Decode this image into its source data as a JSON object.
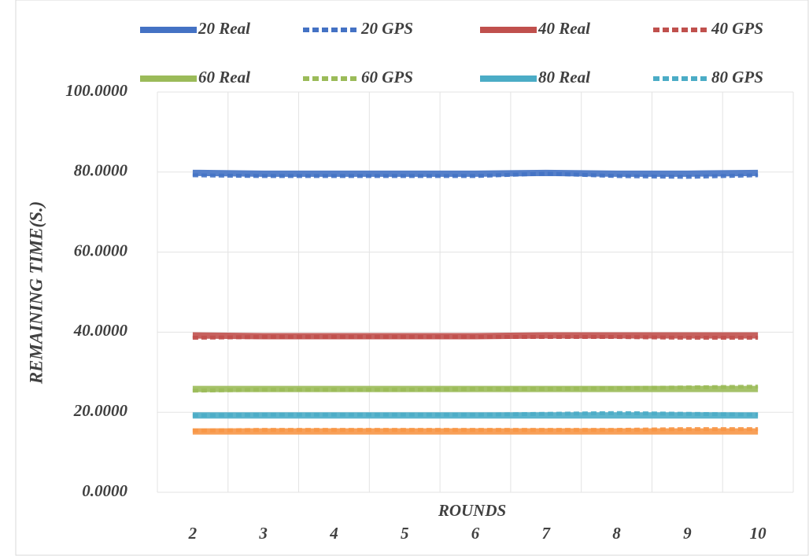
{
  "chart_data": {
    "type": "line",
    "xlabel": "ROUNDS",
    "ylabel": "REMAINING TIME(S.)",
    "categories": [
      "2",
      "3",
      "4",
      "5",
      "6",
      "7",
      "8",
      "9",
      "10"
    ],
    "ylim": [
      0,
      100
    ],
    "yticks": [
      {
        "value": 0,
        "label": "0.0000"
      },
      {
        "value": 20,
        "label": "20.0000"
      },
      {
        "value": 40,
        "label": "40.0000"
      },
      {
        "value": 60,
        "label": "60.0000"
      },
      {
        "value": 80,
        "label": "80.0000"
      },
      {
        "value": 100,
        "label": "100.0000"
      }
    ],
    "grid": true,
    "legend": "top",
    "series": [
      {
        "name": "20 Real",
        "color": "#4472c4",
        "dash": false,
        "values": [
          79.8,
          79.6,
          79.6,
          79.6,
          79.6,
          79.8,
          79.6,
          79.6,
          79.8
        ]
      },
      {
        "name": "20 GPS",
        "color": "#4472c4",
        "dash": true,
        "values": [
          79.2,
          79.0,
          79.0,
          79.0,
          79.0,
          79.6,
          79.0,
          78.8,
          79.2
        ]
      },
      {
        "name": "40 Real",
        "color": "#c0504d",
        "dash": false,
        "values": [
          39.2,
          39.0,
          39.0,
          39.0,
          39.0,
          39.2,
          39.2,
          39.2,
          39.2
        ]
      },
      {
        "name": "40 GPS",
        "color": "#c0504d",
        "dash": true,
        "values": [
          38.6,
          38.8,
          38.8,
          38.8,
          38.8,
          38.8,
          38.8,
          38.6,
          38.6
        ]
      },
      {
        "name": "60 Real",
        "color": "#9bbb59",
        "dash": false,
        "values": [
          25.8,
          25.8,
          25.8,
          25.8,
          25.8,
          25.8,
          25.8,
          25.8,
          25.8
        ]
      },
      {
        "name": "60 GPS",
        "color": "#9bbb59",
        "dash": true,
        "values": [
          25.4,
          25.6,
          25.6,
          25.6,
          25.8,
          25.8,
          26.0,
          26.2,
          26.4
        ]
      },
      {
        "name": "80 Real",
        "color": "#4bacc6",
        "dash": false,
        "values": [
          19.2,
          19.2,
          19.2,
          19.2,
          19.2,
          19.2,
          19.2,
          19.2,
          19.2
        ]
      },
      {
        "name": "80 GPS",
        "color": "#4bacc6",
        "dash": true,
        "values": [
          19.2,
          19.4,
          19.4,
          19.4,
          19.4,
          19.6,
          19.8,
          19.6,
          19.4
        ]
      },
      {
        "color": "#f79646",
        "dash": false,
        "values": [
          15.2,
          15.2,
          15.2,
          15.2,
          15.2,
          15.2,
          15.2,
          15.2,
          15.2
        ]
      },
      {
        "color": "#f79646",
        "dash": true,
        "values": [
          15.4,
          15.6,
          15.6,
          15.6,
          15.6,
          15.6,
          15.6,
          15.8,
          15.8
        ]
      }
    ]
  }
}
